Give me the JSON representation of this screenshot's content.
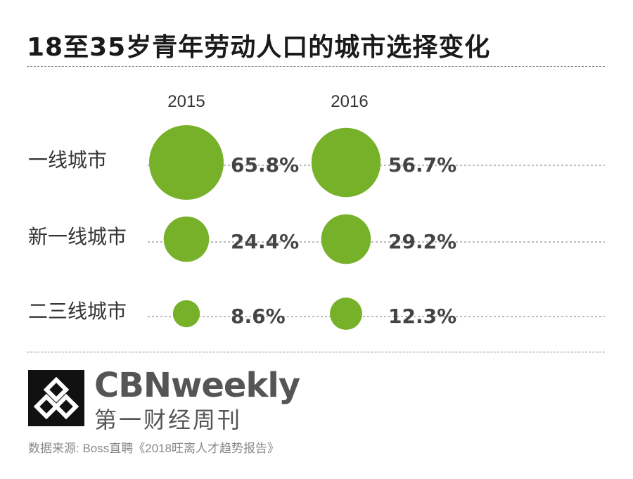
{
  "title": "18至35岁青年劳动人口的城市选择变化",
  "chart_data": {
    "type": "bubble",
    "title": "18至35岁青年劳动人口的城市选择变化",
    "years": [
      "2015",
      "2016"
    ],
    "categories": [
      "一线城市",
      "新一线城市",
      "二三线城市"
    ],
    "series": [
      {
        "name": "2015",
        "values": [
          65.8,
          24.4,
          8.6
        ],
        "labels": [
          "65.8%",
          "24.4%",
          "8.6%"
        ]
      },
      {
        "name": "2016",
        "values": [
          56.7,
          29.2,
          12.3
        ],
        "labels": [
          "56.7%",
          "29.2%",
          "12.3%"
        ]
      }
    ],
    "unit": "%",
    "color": "#77b12a"
  },
  "brand": {
    "name": "CBNweekly",
    "name_cn": "第一财经周刊",
    "logo_icon": "cbn-logo-icon"
  },
  "source": "数据来源: Boss直聘《2018旺离人才趋势报告》"
}
